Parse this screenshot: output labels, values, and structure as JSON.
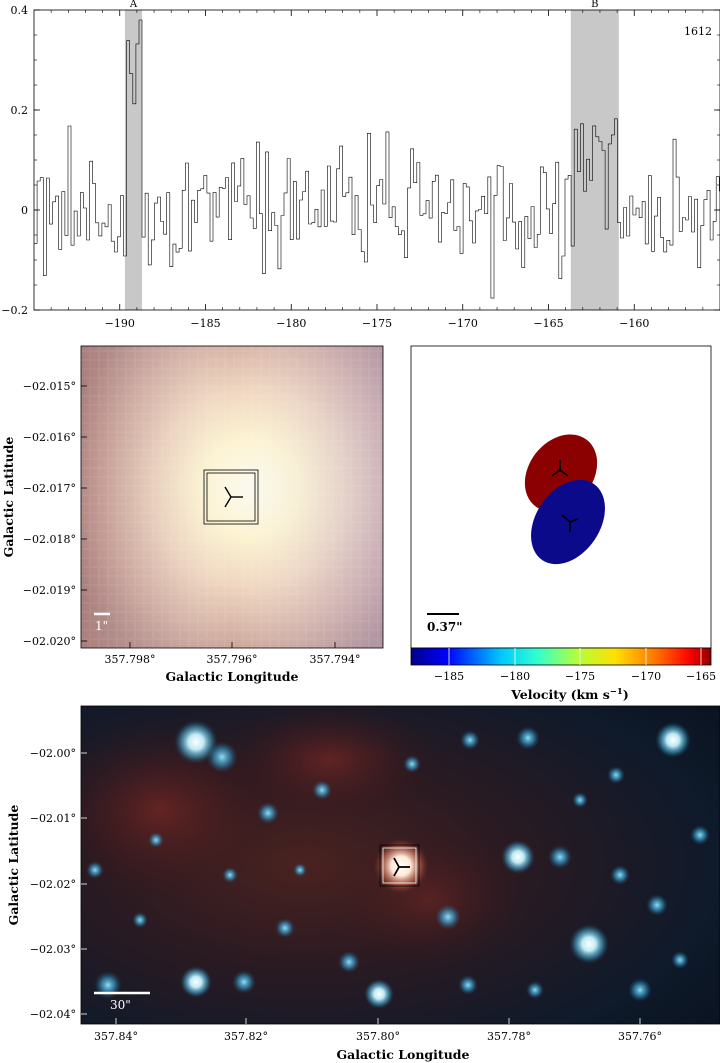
{
  "chart_data": [
    {
      "type": "line",
      "panel": "spectrum",
      "tag": "1612",
      "xlim": [
        -195,
        -155
      ],
      "ylim": [
        -0.2,
        0.4
      ],
      "xticks": [
        -190,
        -185,
        -180,
        -175,
        -170,
        -165,
        -160
      ],
      "yticks": [
        -0.2,
        0,
        0.2,
        0.4
      ],
      "ytick_labels": [
        "−0.2",
        "0",
        "0.2",
        "0.4"
      ],
      "xtick_labels": [
        "−190",
        "−185",
        "−180",
        "−175",
        "−170",
        "−165",
        "−160"
      ],
      "highlight_bands": [
        {
          "label": "A",
          "range": [
            -189.7,
            -188.7
          ]
        },
        {
          "label": "B",
          "range": [
            -163.7,
            -160.9
          ]
        }
      ],
      "noise_sigma": 0.06,
      "channel_width_kms": 0.18,
      "peaks": [
        {
          "x": -189.2,
          "y": 0.35
        },
        {
          "x": -162.5,
          "y": 0.1
        }
      ]
    },
    {
      "type": "image",
      "panel": "zoom-rgb",
      "xlabel": "Galactic Longitude",
      "ylabel": "Galactic Latitude",
      "xticks": [
        "357.798°",
        "357.796°",
        "357.794°"
      ],
      "yticks": [
        "−02.015°",
        "−02.016°",
        "−02.017°",
        "−02.018°",
        "−02.019°",
        "−02.020°"
      ],
      "scalebar_label": "1\""
    },
    {
      "type": "image",
      "panel": "maser-spots",
      "scalebar_label": "0.37\"",
      "spots": [
        {
          "name": "red",
          "velocity": -163,
          "color": "#8b0000"
        },
        {
          "name": "blue",
          "velocity": -189,
          "color": "#0a0a8a"
        }
      ],
      "colorbar": {
        "label": "Velocity (km s",
        "label_sup": "−1",
        "label_end": ")",
        "ticks": [
          "−185",
          "−180",
          "−175",
          "−170",
          "−165"
        ],
        "range": [
          -189,
          -163
        ]
      }
    },
    {
      "type": "image",
      "panel": "wide-field",
      "xlabel": "Galactic Longitude",
      "ylabel": "Galactic Latitude",
      "xticks": [
        "357.84°",
        "357.82°",
        "357.80°",
        "357.78°",
        "357.76°"
      ],
      "yticks": [
        "−02.00°",
        "−02.01°",
        "−02.02°",
        "−02.03°",
        "−02.04°"
      ],
      "scalebar_label": "30\""
    }
  ]
}
